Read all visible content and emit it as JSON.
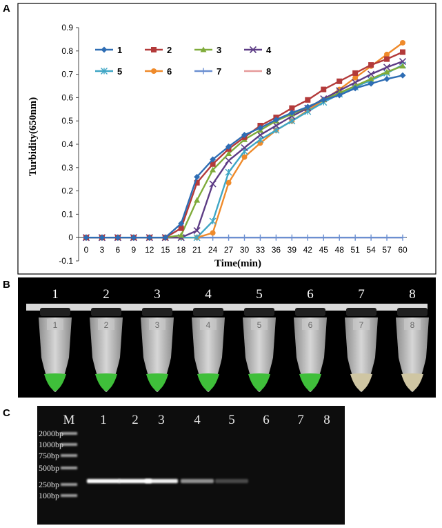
{
  "panels": {
    "a": "A",
    "b": "B",
    "c": "C"
  },
  "chart_data": {
    "type": "line",
    "xlabel": "Time(min)",
    "ylabel": "Turbidity(650nm)",
    "x": [
      0,
      3,
      6,
      9,
      12,
      15,
      18,
      21,
      24,
      27,
      30,
      33,
      36,
      39,
      42,
      45,
      48,
      51,
      54,
      57,
      60
    ],
    "ylim": [
      -0.1,
      0.9
    ],
    "yticks": [
      -0.1,
      0,
      0.1,
      0.2,
      0.3,
      0.4,
      0.5,
      0.6,
      0.7,
      0.8,
      0.9
    ],
    "ytick_labels": [
      "-0.1",
      "0",
      "0.1",
      "0.2",
      "0.3",
      "0.4",
      "0.5",
      "0.6",
      "0.7",
      "0.8",
      "0.9"
    ],
    "grid": false,
    "legend_position": "top-left",
    "series": [
      {
        "name": "1",
        "color": "#2e6db4",
        "marker": "diamond",
        "values": [
          0,
          0,
          0,
          0,
          0,
          0,
          0.06,
          0.26,
          0.335,
          0.39,
          0.44,
          0.47,
          0.505,
          0.535,
          0.56,
          0.59,
          0.61,
          0.64,
          0.66,
          0.68,
          0.695
        ]
      },
      {
        "name": "2",
        "color": "#b33a3a",
        "marker": "square",
        "values": [
          0,
          0,
          0,
          0,
          0,
          0,
          0.04,
          0.235,
          0.315,
          0.38,
          0.43,
          0.48,
          0.515,
          0.555,
          0.59,
          0.635,
          0.67,
          0.705,
          0.74,
          0.765,
          0.795
        ]
      },
      {
        "name": "3",
        "color": "#7fab3a",
        "marker": "triangle",
        "values": [
          0,
          0,
          0,
          0,
          0,
          0,
          0.01,
          0.16,
          0.29,
          0.36,
          0.42,
          0.46,
          0.5,
          0.53,
          0.56,
          0.59,
          0.62,
          0.65,
          0.68,
          0.71,
          0.735
        ]
      },
      {
        "name": "4",
        "color": "#5d3c85",
        "marker": "x",
        "values": [
          0,
          0,
          0,
          0,
          0,
          0,
          0,
          0.03,
          0.23,
          0.33,
          0.385,
          0.44,
          0.48,
          0.52,
          0.555,
          0.595,
          0.63,
          0.665,
          0.7,
          0.73,
          0.755
        ]
      },
      {
        "name": "5",
        "color": "#3fa6c5",
        "marker": "asterisk",
        "values": [
          0,
          0,
          0,
          0,
          0,
          0,
          0,
          0,
          0.07,
          0.28,
          0.37,
          0.42,
          0.46,
          0.5,
          0.54,
          0.58,
          0.615,
          0.645,
          0.675,
          0.705,
          0.74
        ]
      },
      {
        "name": "6",
        "color": "#ef8a2a",
        "marker": "circle",
        "values": [
          0,
          0,
          0,
          0,
          0,
          0,
          0,
          0,
          0.02,
          0.235,
          0.345,
          0.405,
          0.46,
          0.5,
          0.545,
          0.59,
          0.635,
          0.685,
          0.735,
          0.785,
          0.835
        ]
      },
      {
        "name": "7",
        "color": "#6b8fd1",
        "marker": "plus",
        "values": [
          0,
          0,
          0,
          0,
          0,
          0,
          0,
          0,
          0,
          0,
          0,
          0,
          0,
          0,
          0,
          0,
          0,
          0,
          0,
          0,
          0
        ]
      },
      {
        "name": "8",
        "color": "#e69a9a",
        "marker": "none",
        "values": [
          0,
          0,
          0,
          0,
          0,
          0,
          0,
          0,
          0,
          0,
          0,
          0,
          0,
          0,
          0,
          0,
          0,
          0,
          0,
          0,
          0
        ]
      }
    ]
  },
  "tubes": {
    "labels": [
      "1",
      "2",
      "3",
      "4",
      "5",
      "6",
      "7",
      "8"
    ],
    "cap_labels": [
      "1",
      "2",
      "3",
      "4",
      "5",
      "6",
      "7",
      "8"
    ],
    "contents": [
      "green",
      "green",
      "green",
      "green",
      "green",
      "green",
      "clear",
      "clear"
    ],
    "colors": {
      "green": "#3fbf3a",
      "clear": "#cfc6a3"
    }
  },
  "gel": {
    "marker_lane_label": "M",
    "lane_labels": [
      "1",
      "2",
      "3",
      "4",
      "5",
      "6",
      "7",
      "8"
    ],
    "ladder": [
      "2000bp",
      "1000bp",
      "750bp",
      "500bp",
      "250bp",
      "100bp"
    ],
    "band_size": "250bp",
    "band_intensities": [
      1.0,
      1.0,
      0.95,
      0.55,
      0.25,
      0,
      0,
      0
    ]
  }
}
